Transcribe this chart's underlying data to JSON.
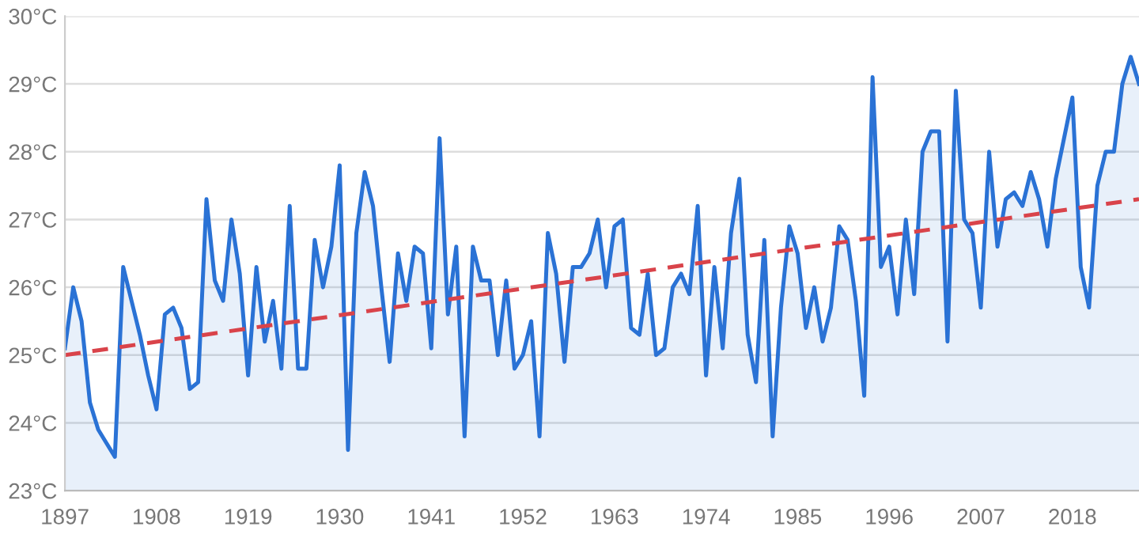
{
  "chart_data": {
    "type": "area",
    "xlim": [
      1897,
      2026
    ],
    "xticks": [
      1897,
      1908,
      1919,
      1930,
      1941,
      1952,
      1963,
      1974,
      1985,
      1996,
      2007,
      2018
    ],
    "ylim": [
      23,
      30
    ],
    "yticks": [
      {
        "value": 23,
        "label": "23°C"
      },
      {
        "value": 24,
        "label": "24°C"
      },
      {
        "value": 25,
        "label": "25°C"
      },
      {
        "value": 26,
        "label": "26°C"
      },
      {
        "value": 27,
        "label": "27°C"
      },
      {
        "value": 28,
        "label": "28°C"
      },
      {
        "value": 29,
        "label": "29°C"
      },
      {
        "value": 30,
        "label": "30°C"
      }
    ],
    "grid": "y",
    "series": [
      {
        "color": "#2a72d5",
        "x": [
          1897,
          1898,
          1899,
          1900,
          1901,
          1902,
          1903,
          1904,
          1905,
          1906,
          1907,
          1908,
          1909,
          1910,
          1911,
          1912,
          1913,
          1914,
          1915,
          1916,
          1917,
          1918,
          1919,
          1920,
          1921,
          1922,
          1923,
          1924,
          1925,
          1926,
          1927,
          1928,
          1929,
          1930,
          1931,
          1932,
          1933,
          1934,
          1935,
          1936,
          1937,
          1938,
          1939,
          1940,
          1941,
          1942,
          1943,
          1944,
          1945,
          1946,
          1947,
          1948,
          1949,
          1950,
          1951,
          1952,
          1953,
          1954,
          1955,
          1956,
          1957,
          1958,
          1959,
          1960,
          1961,
          1962,
          1963,
          1964,
          1965,
          1966,
          1967,
          1968,
          1969,
          1970,
          1971,
          1972,
          1973,
          1974,
          1975,
          1976,
          1977,
          1978,
          1979,
          1980,
          1981,
          1982,
          1983,
          1984,
          1985,
          1986,
          1987,
          1988,
          1989,
          1990,
          1991,
          1992,
          1993,
          1994,
          1995,
          1996,
          1997,
          1998,
          1999,
          2000,
          2001,
          2002,
          2003,
          2004,
          2005,
          2006,
          2007,
          2008,
          2009,
          2010,
          2011,
          2012,
          2013,
          2014,
          2015,
          2016,
          2017,
          2018,
          2019,
          2020,
          2021,
          2022,
          2023,
          2024,
          2025,
          2026
        ],
        "values": [
          25.1,
          26.0,
          25.5,
          24.3,
          23.9,
          23.7,
          23.5,
          26.3,
          25.8,
          25.3,
          24.7,
          24.2,
          25.6,
          25.7,
          25.4,
          24.5,
          24.6,
          27.3,
          26.1,
          25.8,
          27.0,
          26.2,
          24.7,
          26.3,
          25.2,
          25.8,
          24.8,
          27.2,
          24.8,
          24.8,
          26.7,
          26.0,
          26.6,
          27.8,
          23.6,
          26.8,
          27.7,
          27.2,
          26.0,
          24.9,
          26.5,
          25.8,
          26.6,
          26.5,
          25.1,
          28.2,
          25.6,
          26.6,
          23.8,
          26.6,
          26.1,
          26.1,
          25.0,
          26.1,
          24.8,
          25.0,
          25.5,
          23.8,
          26.8,
          26.2,
          24.9,
          26.3,
          26.3,
          26.5,
          27.0,
          26.0,
          26.9,
          27.0,
          25.4,
          25.3,
          26.2,
          25.0,
          25.1,
          26.0,
          26.2,
          25.9,
          27.2,
          24.7,
          26.3,
          25.1,
          26.8,
          27.6,
          25.3,
          24.6,
          26.7,
          23.8,
          25.7,
          26.9,
          26.5,
          25.4,
          26.0,
          25.2,
          25.7,
          26.9,
          26.7,
          25.8,
          24.4,
          29.1,
          26.3,
          26.6,
          25.6,
          27.0,
          25.9,
          28.0,
          28.3,
          28.3,
          25.2,
          28.9,
          27.0,
          26.8,
          25.7,
          28.0,
          26.6,
          27.3,
          27.4,
          27.2,
          27.7,
          27.3,
          26.6,
          27.6,
          28.2,
          28.8,
          26.3,
          25.7,
          27.5,
          28.0,
          28.0,
          29.0,
          29.4,
          29.0
        ]
      },
      {
        "type": "line",
        "color": "#d9434a",
        "line_style": "dashed",
        "x": [
          1897,
          2026
        ],
        "values": [
          25.0,
          27.3
        ]
      }
    ]
  }
}
